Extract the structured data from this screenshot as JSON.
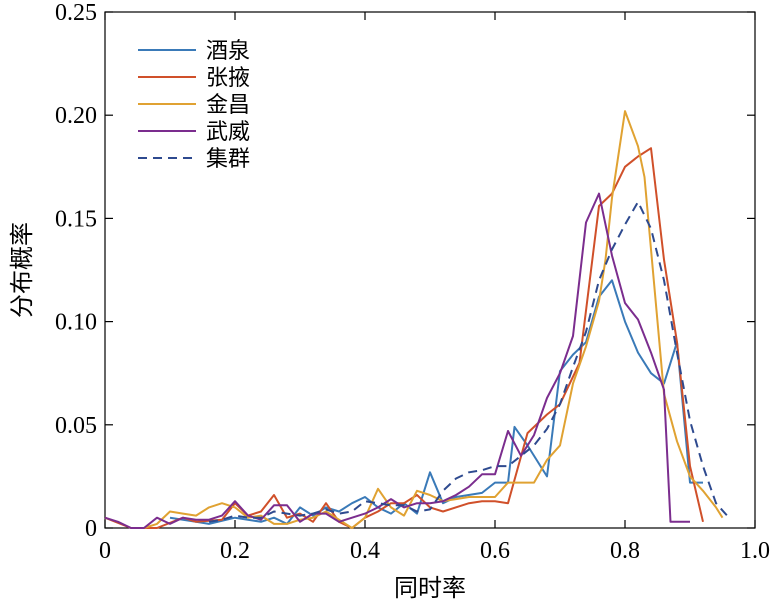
{
  "chart_data": {
    "type": "line",
    "title": "",
    "xlabel": "同时率",
    "ylabel": "分布概率",
    "xlim": [
      0,
      1.0
    ],
    "ylim": [
      0,
      0.25
    ],
    "xticks": [
      0,
      0.2,
      0.4,
      0.6,
      0.8,
      1.0
    ],
    "xtick_labels": [
      "0",
      "0.2",
      "0.4",
      "0.6",
      "0.8",
      "1.0"
    ],
    "yticks": [
      0,
      0.05,
      0.1,
      0.15,
      0.2,
      0.25
    ],
    "ytick_labels": [
      "0",
      "0.05",
      "0.10",
      "0.15",
      "0.20",
      "0.25"
    ],
    "grid": false,
    "legend_position": "top-left",
    "series": [
      {
        "name": "酒泉",
        "color": "#3a7ab8",
        "dash": "solid",
        "points": [
          [
            0.1,
            0.005
          ],
          [
            0.14,
            0.003
          ],
          [
            0.16,
            0.002
          ],
          [
            0.2,
            0.005
          ],
          [
            0.24,
            0.003
          ],
          [
            0.26,
            0.005
          ],
          [
            0.28,
            0.002
          ],
          [
            0.3,
            0.01
          ],
          [
            0.32,
            0.006
          ],
          [
            0.34,
            0.01
          ],
          [
            0.36,
            0.008
          ],
          [
            0.38,
            0.012
          ],
          [
            0.4,
            0.015
          ],
          [
            0.42,
            0.01
          ],
          [
            0.44,
            0.007
          ],
          [
            0.46,
            0.012
          ],
          [
            0.48,
            0.007
          ],
          [
            0.5,
            0.027
          ],
          [
            0.52,
            0.012
          ],
          [
            0.54,
            0.015
          ],
          [
            0.58,
            0.017
          ],
          [
            0.6,
            0.022
          ],
          [
            0.62,
            0.022
          ],
          [
            0.63,
            0.049
          ],
          [
            0.65,
            0.04
          ],
          [
            0.67,
            0.03
          ],
          [
            0.68,
            0.025
          ],
          [
            0.7,
            0.076
          ],
          [
            0.72,
            0.084
          ],
          [
            0.74,
            0.09
          ],
          [
            0.76,
            0.112
          ],
          [
            0.78,
            0.12
          ],
          [
            0.8,
            0.1
          ],
          [
            0.82,
            0.085
          ],
          [
            0.84,
            0.075
          ],
          [
            0.86,
            0.07
          ],
          [
            0.88,
            0.09
          ],
          [
            0.9,
            0.022
          ],
          [
            0.92,
            0.022
          ]
        ]
      },
      {
        "name": "张掖",
        "color": "#d0502a",
        "dash": "solid",
        "points": [
          [
            0.0,
            0.005
          ],
          [
            0.04,
            0.0
          ],
          [
            0.08,
            0.0
          ],
          [
            0.12,
            0.005
          ],
          [
            0.14,
            0.003
          ],
          [
            0.18,
            0.004
          ],
          [
            0.2,
            0.012
          ],
          [
            0.22,
            0.006
          ],
          [
            0.24,
            0.008
          ],
          [
            0.26,
            0.016
          ],
          [
            0.28,
            0.005
          ],
          [
            0.3,
            0.007
          ],
          [
            0.32,
            0.003
          ],
          [
            0.34,
            0.012
          ],
          [
            0.36,
            0.003
          ],
          [
            0.38,
            0.0
          ],
          [
            0.4,
            0.005
          ],
          [
            0.42,
            0.008
          ],
          [
            0.44,
            0.012
          ],
          [
            0.46,
            0.012
          ],
          [
            0.48,
            0.016
          ],
          [
            0.5,
            0.01
          ],
          [
            0.52,
            0.008
          ],
          [
            0.56,
            0.012
          ],
          [
            0.58,
            0.013
          ],
          [
            0.6,
            0.013
          ],
          [
            0.62,
            0.012
          ],
          [
            0.65,
            0.046
          ],
          [
            0.68,
            0.055
          ],
          [
            0.7,
            0.06
          ],
          [
            0.73,
            0.08
          ],
          [
            0.76,
            0.156
          ],
          [
            0.78,
            0.162
          ],
          [
            0.8,
            0.175
          ],
          [
            0.82,
            0.18
          ],
          [
            0.84,
            0.184
          ],
          [
            0.86,
            0.13
          ],
          [
            0.88,
            0.09
          ],
          [
            0.9,
            0.03
          ],
          [
            0.92,
            0.003
          ]
        ]
      },
      {
        "name": "金昌",
        "color": "#e0a232",
        "dash": "solid",
        "points": [
          [
            0.06,
            0.0
          ],
          [
            0.08,
            0.002
          ],
          [
            0.1,
            0.008
          ],
          [
            0.12,
            0.007
          ],
          [
            0.14,
            0.006
          ],
          [
            0.16,
            0.01
          ],
          [
            0.18,
            0.012
          ],
          [
            0.2,
            0.01
          ],
          [
            0.22,
            0.005
          ],
          [
            0.24,
            0.006
          ],
          [
            0.26,
            0.002
          ],
          [
            0.28,
            0.002
          ],
          [
            0.3,
            0.004
          ],
          [
            0.32,
            0.005
          ],
          [
            0.34,
            0.008
          ],
          [
            0.36,
            0.004
          ],
          [
            0.38,
            0.0
          ],
          [
            0.4,
            0.005
          ],
          [
            0.42,
            0.019
          ],
          [
            0.44,
            0.01
          ],
          [
            0.46,
            0.006
          ],
          [
            0.48,
            0.018
          ],
          [
            0.5,
            0.016
          ],
          [
            0.52,
            0.013
          ],
          [
            0.54,
            0.014
          ],
          [
            0.56,
            0.015
          ],
          [
            0.6,
            0.015
          ],
          [
            0.62,
            0.022
          ],
          [
            0.66,
            0.022
          ],
          [
            0.68,
            0.033
          ],
          [
            0.7,
            0.04
          ],
          [
            0.72,
            0.07
          ],
          [
            0.74,
            0.088
          ],
          [
            0.76,
            0.11
          ],
          [
            0.77,
            0.13
          ],
          [
            0.78,
            0.16
          ],
          [
            0.8,
            0.202
          ],
          [
            0.82,
            0.185
          ],
          [
            0.83,
            0.17
          ],
          [
            0.86,
            0.065
          ],
          [
            0.88,
            0.042
          ],
          [
            0.9,
            0.025
          ],
          [
            0.92,
            0.018
          ],
          [
            0.94,
            0.01
          ],
          [
            0.95,
            0.005
          ]
        ]
      },
      {
        "name": "武威",
        "color": "#7b2d8e",
        "dash": "solid",
        "points": [
          [
            0.0,
            0.005
          ],
          [
            0.02,
            0.003
          ],
          [
            0.04,
            0.0
          ],
          [
            0.06,
            0.0
          ],
          [
            0.08,
            0.005
          ],
          [
            0.1,
            0.002
          ],
          [
            0.12,
            0.005
          ],
          [
            0.14,
            0.004
          ],
          [
            0.16,
            0.004
          ],
          [
            0.18,
            0.006
          ],
          [
            0.2,
            0.013
          ],
          [
            0.22,
            0.006
          ],
          [
            0.24,
            0.004
          ],
          [
            0.26,
            0.011
          ],
          [
            0.28,
            0.011
          ],
          [
            0.3,
            0.003
          ],
          [
            0.32,
            0.007
          ],
          [
            0.34,
            0.007
          ],
          [
            0.36,
            0.003
          ],
          [
            0.38,
            0.005
          ],
          [
            0.4,
            0.007
          ],
          [
            0.42,
            0.01
          ],
          [
            0.44,
            0.014
          ],
          [
            0.46,
            0.01
          ],
          [
            0.48,
            0.012
          ],
          [
            0.5,
            0.012
          ],
          [
            0.52,
            0.013
          ],
          [
            0.54,
            0.016
          ],
          [
            0.56,
            0.02
          ],
          [
            0.58,
            0.026
          ],
          [
            0.6,
            0.026
          ],
          [
            0.62,
            0.047
          ],
          [
            0.64,
            0.035
          ],
          [
            0.66,
            0.045
          ],
          [
            0.68,
            0.063
          ],
          [
            0.7,
            0.075
          ],
          [
            0.72,
            0.093
          ],
          [
            0.74,
            0.148
          ],
          [
            0.76,
            0.162
          ],
          [
            0.78,
            0.132
          ],
          [
            0.8,
            0.109
          ],
          [
            0.82,
            0.101
          ],
          [
            0.84,
            0.085
          ],
          [
            0.86,
            0.067
          ],
          [
            0.87,
            0.003
          ],
          [
            0.9,
            0.003
          ]
        ]
      },
      {
        "name": "集群",
        "color": "#2e4a8f",
        "dash": "dashed",
        "points": [
          [
            0.16,
            0.003
          ],
          [
            0.18,
            0.004
          ],
          [
            0.2,
            0.006
          ],
          [
            0.22,
            0.005
          ],
          [
            0.24,
            0.005
          ],
          [
            0.26,
            0.008
          ],
          [
            0.28,
            0.007
          ],
          [
            0.3,
            0.006
          ],
          [
            0.32,
            0.007
          ],
          [
            0.34,
            0.009
          ],
          [
            0.36,
            0.007
          ],
          [
            0.38,
            0.008
          ],
          [
            0.4,
            0.013
          ],
          [
            0.42,
            0.012
          ],
          [
            0.44,
            0.011
          ],
          [
            0.46,
            0.011
          ],
          [
            0.48,
            0.008
          ],
          [
            0.5,
            0.009
          ],
          [
            0.52,
            0.018
          ],
          [
            0.54,
            0.024
          ],
          [
            0.56,
            0.027
          ],
          [
            0.58,
            0.028
          ],
          [
            0.6,
            0.03
          ],
          [
            0.62,
            0.03
          ],
          [
            0.64,
            0.035
          ],
          [
            0.66,
            0.04
          ],
          [
            0.68,
            0.048
          ],
          [
            0.7,
            0.06
          ],
          [
            0.72,
            0.078
          ],
          [
            0.74,
            0.095
          ],
          [
            0.76,
            0.12
          ],
          [
            0.78,
            0.135
          ],
          [
            0.8,
            0.147
          ],
          [
            0.82,
            0.158
          ],
          [
            0.84,
            0.145
          ],
          [
            0.86,
            0.12
          ],
          [
            0.88,
            0.085
          ],
          [
            0.9,
            0.052
          ],
          [
            0.92,
            0.03
          ],
          [
            0.94,
            0.012
          ],
          [
            0.96,
            0.005
          ]
        ]
      }
    ]
  }
}
